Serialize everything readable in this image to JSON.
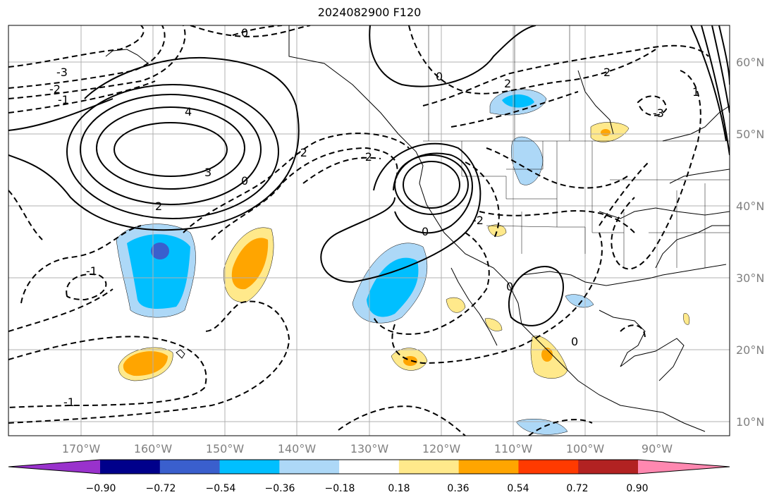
{
  "title": "2024082900 F120",
  "map": {
    "lat_labels": [
      "60°N",
      "50°N",
      "40°N",
      "30°N",
      "20°N",
      "10°N"
    ],
    "lon_labels": [
      "170°W",
      "160°W",
      "150°W",
      "140°W",
      "130°W",
      "120°W",
      "110°W",
      "100°W",
      "90°W"
    ],
    "contour_labels": [
      "-3",
      "-2",
      "-1",
      "0",
      "4",
      "3",
      "2",
      "-2",
      "-1",
      "-1",
      "0",
      "-2",
      "2",
      "0",
      "0",
      "-3",
      "2",
      "-2",
      "0",
      "0",
      "1"
    ]
  },
  "colorbar": {
    "ticks": [
      "−0.90",
      "−0.72",
      "−0.54",
      "−0.36",
      "−0.18",
      "0.18",
      "0.36",
      "0.54",
      "0.72",
      "0.90"
    ],
    "colors": [
      "#9932cc",
      "#00008b",
      "#3a5fcd",
      "#00bfff",
      "#add8f7",
      "#ffffff",
      "#ffe98b",
      "#ffa500",
      "#ff3a00",
      "#b22222",
      "#ff88b0"
    ],
    "extend": "both"
  },
  "shading_colors": {
    "light_blue": "#add8f7",
    "blue": "#00bfff",
    "dark_blue": "#3a5fcd",
    "light_yellow": "#ffe98b",
    "orange": "#ffa500",
    "red_orange": "#ff3a00"
  }
}
